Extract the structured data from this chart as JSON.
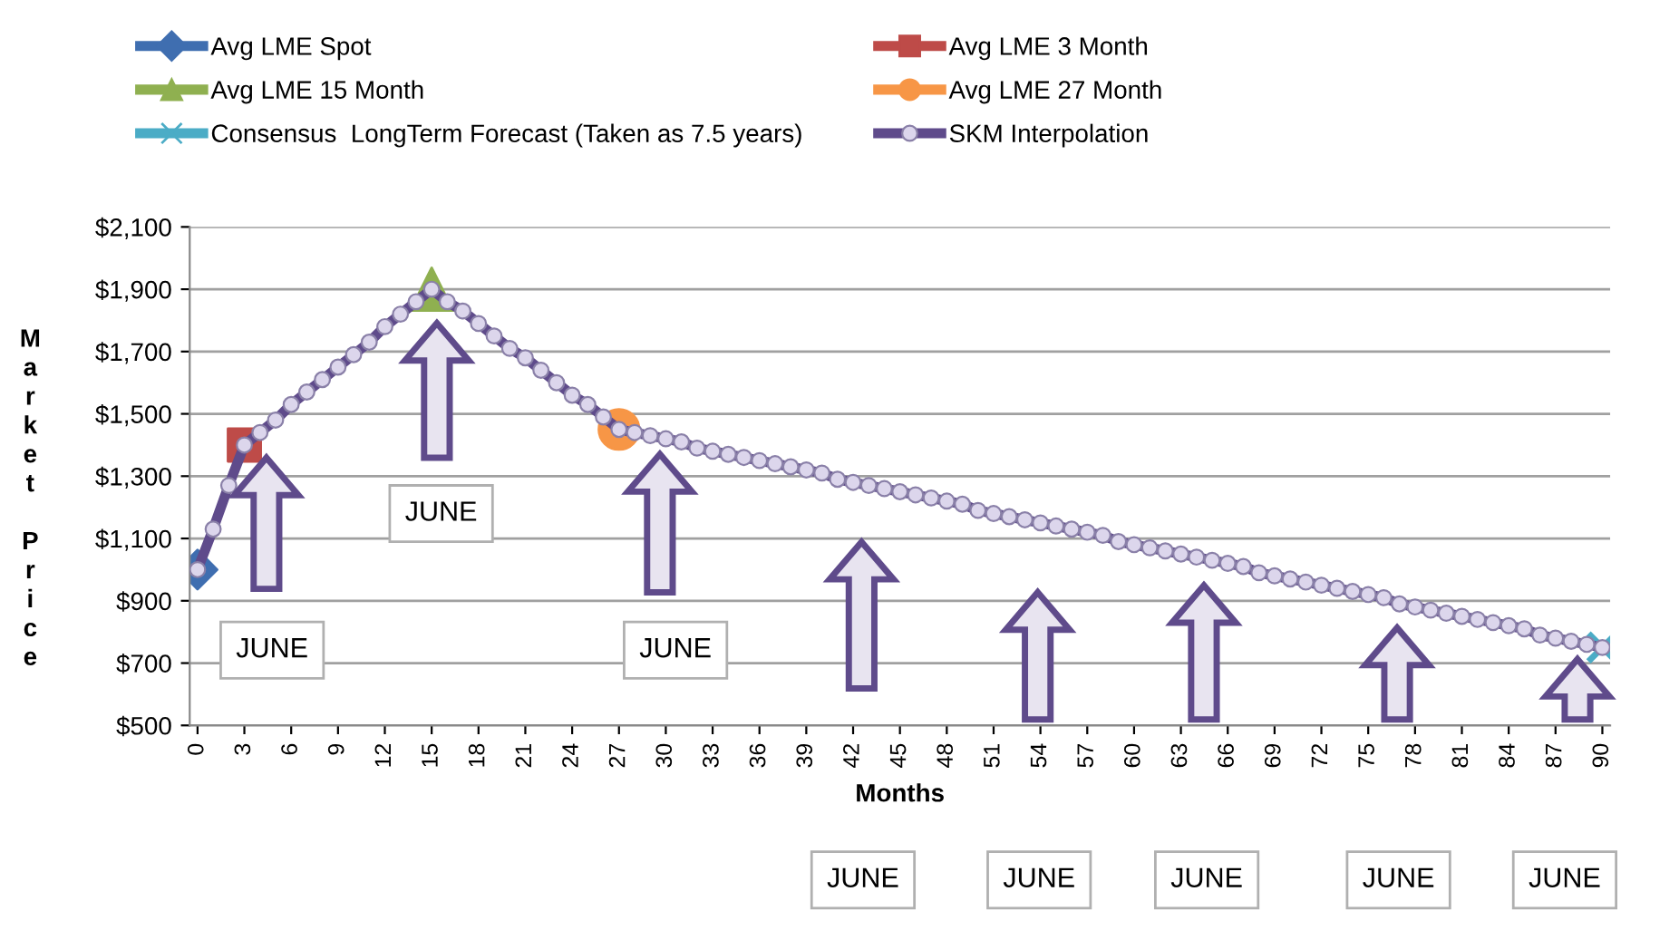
{
  "chart_data": {
    "type": "line",
    "xlabel": "Months",
    "ylabel": "Market Price",
    "xlim": [
      -0.5,
      90.5
    ],
    "xticks": [
      0,
      3,
      6,
      9,
      12,
      15,
      18,
      21,
      24,
      27,
      30,
      33,
      36,
      39,
      42,
      45,
      48,
      51,
      54,
      57,
      60,
      63,
      66,
      69,
      72,
      75,
      78,
      81,
      84,
      87,
      90
    ],
    "ylim": [
      500,
      2100
    ],
    "yticks": [
      {
        "value": 500,
        "label": "$500"
      },
      {
        "value": 700,
        "label": "$700"
      },
      {
        "value": 900,
        "label": "$900"
      },
      {
        "value": 1100,
        "label": "$1,100"
      },
      {
        "value": 1300,
        "label": "$1,300"
      },
      {
        "value": 1500,
        "label": "$1,500"
      },
      {
        "value": 1700,
        "label": "$1,700"
      },
      {
        "value": 1900,
        "label": "$1,900"
      },
      {
        "value": 2100,
        "label": "$2,100"
      }
    ],
    "grid": "y",
    "legend": "top",
    "series": [
      {
        "name": "Avg LME Spot",
        "type": "scatter",
        "marker": "diamond",
        "color": "#3f6eb0",
        "x": [
          0
        ],
        "values": [
          1000
        ]
      },
      {
        "name": "Avg LME 3 Month",
        "type": "scatter",
        "marker": "square",
        "color": "#be4b48",
        "x": [
          3
        ],
        "values": [
          1400
        ]
      },
      {
        "name": "Avg LME 15 Month",
        "type": "scatter",
        "marker": "triangle",
        "color": "#8fb050",
        "x": [
          15
        ],
        "values": [
          1900
        ]
      },
      {
        "name": "Avg LME 27 Month",
        "type": "scatter",
        "marker": "circle",
        "color": "#f79646",
        "x": [
          27
        ],
        "values": [
          1450
        ]
      },
      {
        "name": "Consensus  LongTerm Forecast (Taken as 7.5 years)",
        "type": "scatter",
        "marker": "cross",
        "color": "#4bacc6",
        "x": [
          90
        ],
        "values": [
          750
        ]
      },
      {
        "name": "SKM Interpolation",
        "marker": "circle",
        "color": "#5f4b8b",
        "x": [
          0,
          1,
          2,
          3,
          4,
          5,
          6,
          7,
          8,
          9,
          10,
          11,
          12,
          13,
          14,
          15,
          16,
          17,
          18,
          19,
          20,
          21,
          22,
          23,
          24,
          25,
          26,
          27,
          28,
          29,
          30,
          31,
          32,
          33,
          34,
          35,
          36,
          37,
          38,
          39,
          40,
          41,
          42,
          43,
          44,
          45,
          46,
          47,
          48,
          49,
          50,
          51,
          52,
          53,
          54,
          55,
          56,
          57,
          58,
          59,
          60,
          61,
          62,
          63,
          64,
          65,
          66,
          67,
          68,
          69,
          70,
          71,
          72,
          73,
          74,
          75,
          76,
          77,
          78,
          79,
          80,
          81,
          82,
          83,
          84,
          85,
          86,
          87,
          88,
          89,
          90
        ],
        "values": [
          1000,
          1130,
          1270,
          1400,
          1440,
          1480,
          1530,
          1570,
          1610,
          1650,
          1690,
          1730,
          1780,
          1820,
          1860,
          1900,
          1860,
          1830,
          1790,
          1750,
          1710,
          1680,
          1640,
          1600,
          1560,
          1530,
          1490,
          1450,
          1440,
          1430,
          1420,
          1410,
          1390,
          1380,
          1370,
          1360,
          1350,
          1340,
          1330,
          1320,
          1310,
          1290,
          1280,
          1270,
          1260,
          1250,
          1240,
          1230,
          1220,
          1210,
          1190,
          1180,
          1170,
          1160,
          1150,
          1140,
          1130,
          1120,
          1110,
          1090,
          1080,
          1070,
          1060,
          1050,
          1040,
          1030,
          1020,
          1010,
          990,
          980,
          970,
          960,
          950,
          940,
          930,
          920,
          910,
          890,
          880,
          870,
          860,
          850,
          840,
          830,
          820,
          810,
          790,
          780,
          770,
          760,
          750
        ]
      }
    ],
    "annotations": [
      "JUNE",
      "JUNE",
      "JUNE",
      "JUNE",
      "JUNE",
      "JUNE",
      "JUNE",
      "JUNE"
    ]
  }
}
